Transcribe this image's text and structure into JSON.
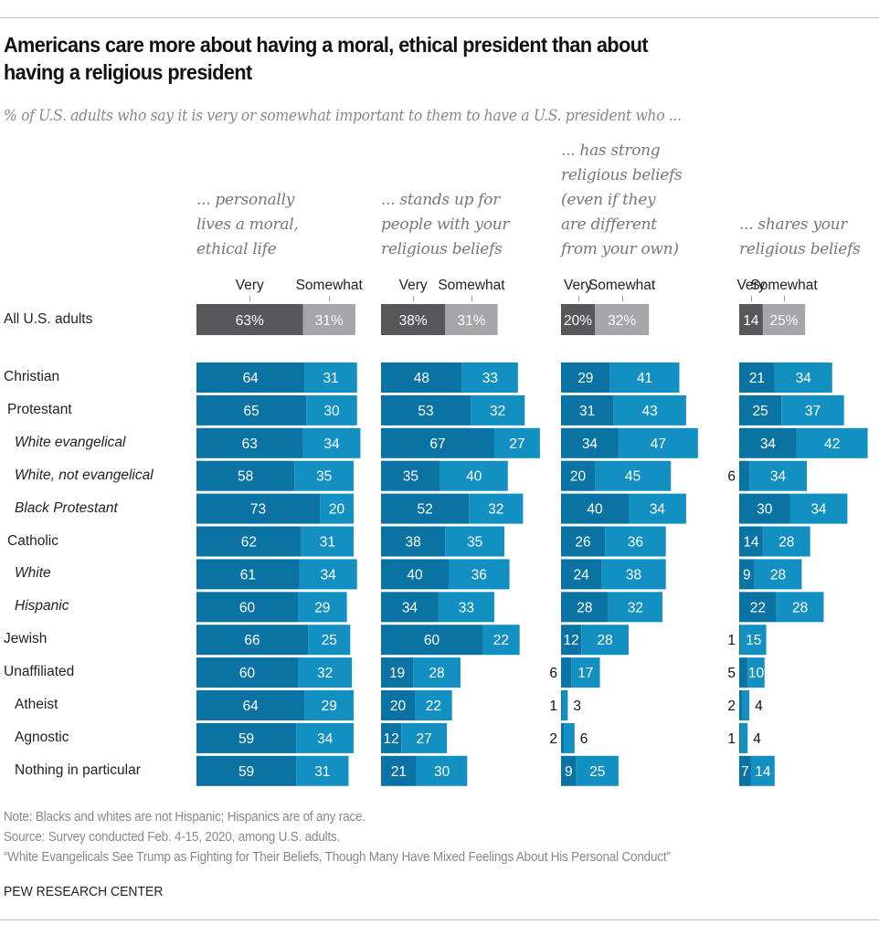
{
  "header": {
    "title_line1": "Americans care more about having a moral, ethical president than about",
    "title_line2": "having a religious president",
    "subtitle": "% of U.S. adults who say it is very or somewhat important to them to have a U.S. president who ..."
  },
  "legend": {
    "very": "Very",
    "somewhat": "Somewhat"
  },
  "colors": {
    "total_very": "#58585a",
    "total_somewhat": "#a6a6a8",
    "very": "#0a73a3",
    "somewhat": "#1390c2",
    "label_inside": "#ffffff",
    "label_outside": "#111111"
  },
  "footer": {
    "note": "Note: Blacks and whites are not Hispanic; Hispanics are of any race.",
    "source": "Source: Survey conducted Feb. 4-15, 2020, among U.S. adults.",
    "report": "“White Evangelicals See Trump as Fighting for Their Beliefs, Though Many Have Mixed Feelings About His Personal Conduct”",
    "brand": "PEW RESEARCH CENTER"
  },
  "chart_data": {
    "type": "bar",
    "orientation": "horizontal-stacked",
    "title": "Americans care more about having a moral, ethical president than about having a religious president",
    "subtitle": "% of U.S. adults who say it is very or somewhat important to them to have a U.S. president who ...",
    "legend": [
      "Very",
      "Somewhat"
    ],
    "panels": [
      {
        "name": "... personally\nlives a moral,\nethical life"
      },
      {
        "name": "... stands up for\npeople with your\nreligious beliefs"
      },
      {
        "name": "... has strong\nreligious beliefs\n(even if they\nare different\nfrom your own)"
      },
      {
        "name": "... shares your\nreligious beliefs"
      }
    ],
    "total": {
      "category": "All U.S. adults",
      "very": [
        63,
        38,
        20,
        14
      ],
      "somewhat": [
        31,
        31,
        32,
        25
      ],
      "labels_very": [
        "63%",
        "38%",
        "20%",
        "14"
      ],
      "labels_somewhat": [
        "31%",
        "31%",
        "32%",
        "25%"
      ]
    },
    "categories": [
      {
        "label": "Christian",
        "level": 0,
        "italic": false
      },
      {
        "label": "Protestant",
        "level": 1,
        "italic": false
      },
      {
        "label": "White evangelical",
        "level": 2,
        "italic": true
      },
      {
        "label": "White, not evangelical",
        "level": 2,
        "italic": true
      },
      {
        "label": "Black Protestant",
        "level": 2,
        "italic": true
      },
      {
        "label": "Catholic",
        "level": 1,
        "italic": false
      },
      {
        "label": "White",
        "level": 2,
        "italic": true
      },
      {
        "label": "Hispanic",
        "level": 2,
        "italic": true
      },
      {
        "label": "Jewish",
        "level": 0,
        "italic": false
      },
      {
        "label": "Unaffiliated",
        "level": 0,
        "italic": false
      },
      {
        "label": "Atheist",
        "level": 2,
        "italic": false
      },
      {
        "label": "Agnostic",
        "level": 2,
        "italic": false
      },
      {
        "label": "Nothing in particular",
        "level": 2,
        "italic": false
      }
    ],
    "series": [
      {
        "panel": 0,
        "very": [
          64,
          65,
          63,
          58,
          73,
          62,
          61,
          60,
          66,
          60,
          64,
          59,
          59
        ],
        "somewhat": [
          31,
          30,
          34,
          35,
          20,
          31,
          34,
          29,
          25,
          32,
          29,
          34,
          31
        ]
      },
      {
        "panel": 1,
        "very": [
          48,
          53,
          67,
          35,
          52,
          38,
          40,
          34,
          60,
          19,
          20,
          12,
          21
        ],
        "somewhat": [
          33,
          32,
          27,
          40,
          32,
          35,
          36,
          33,
          22,
          28,
          22,
          27,
          30
        ]
      },
      {
        "panel": 2,
        "very": [
          29,
          31,
          34,
          20,
          40,
          26,
          24,
          28,
          12,
          6,
          1,
          2,
          9
        ],
        "somewhat": [
          41,
          43,
          47,
          45,
          34,
          36,
          38,
          32,
          28,
          17,
          3,
          6,
          25
        ]
      },
      {
        "panel": 3,
        "very": [
          21,
          25,
          34,
          6,
          30,
          14,
          9,
          22,
          1,
          5,
          2,
          1,
          7
        ],
        "somewhat": [
          34,
          37,
          42,
          34,
          34,
          28,
          28,
          28,
          15,
          10,
          4,
          4,
          14
        ]
      }
    ],
    "xlabel": "",
    "ylabel": "",
    "xlim": [
      0,
      100
    ]
  }
}
